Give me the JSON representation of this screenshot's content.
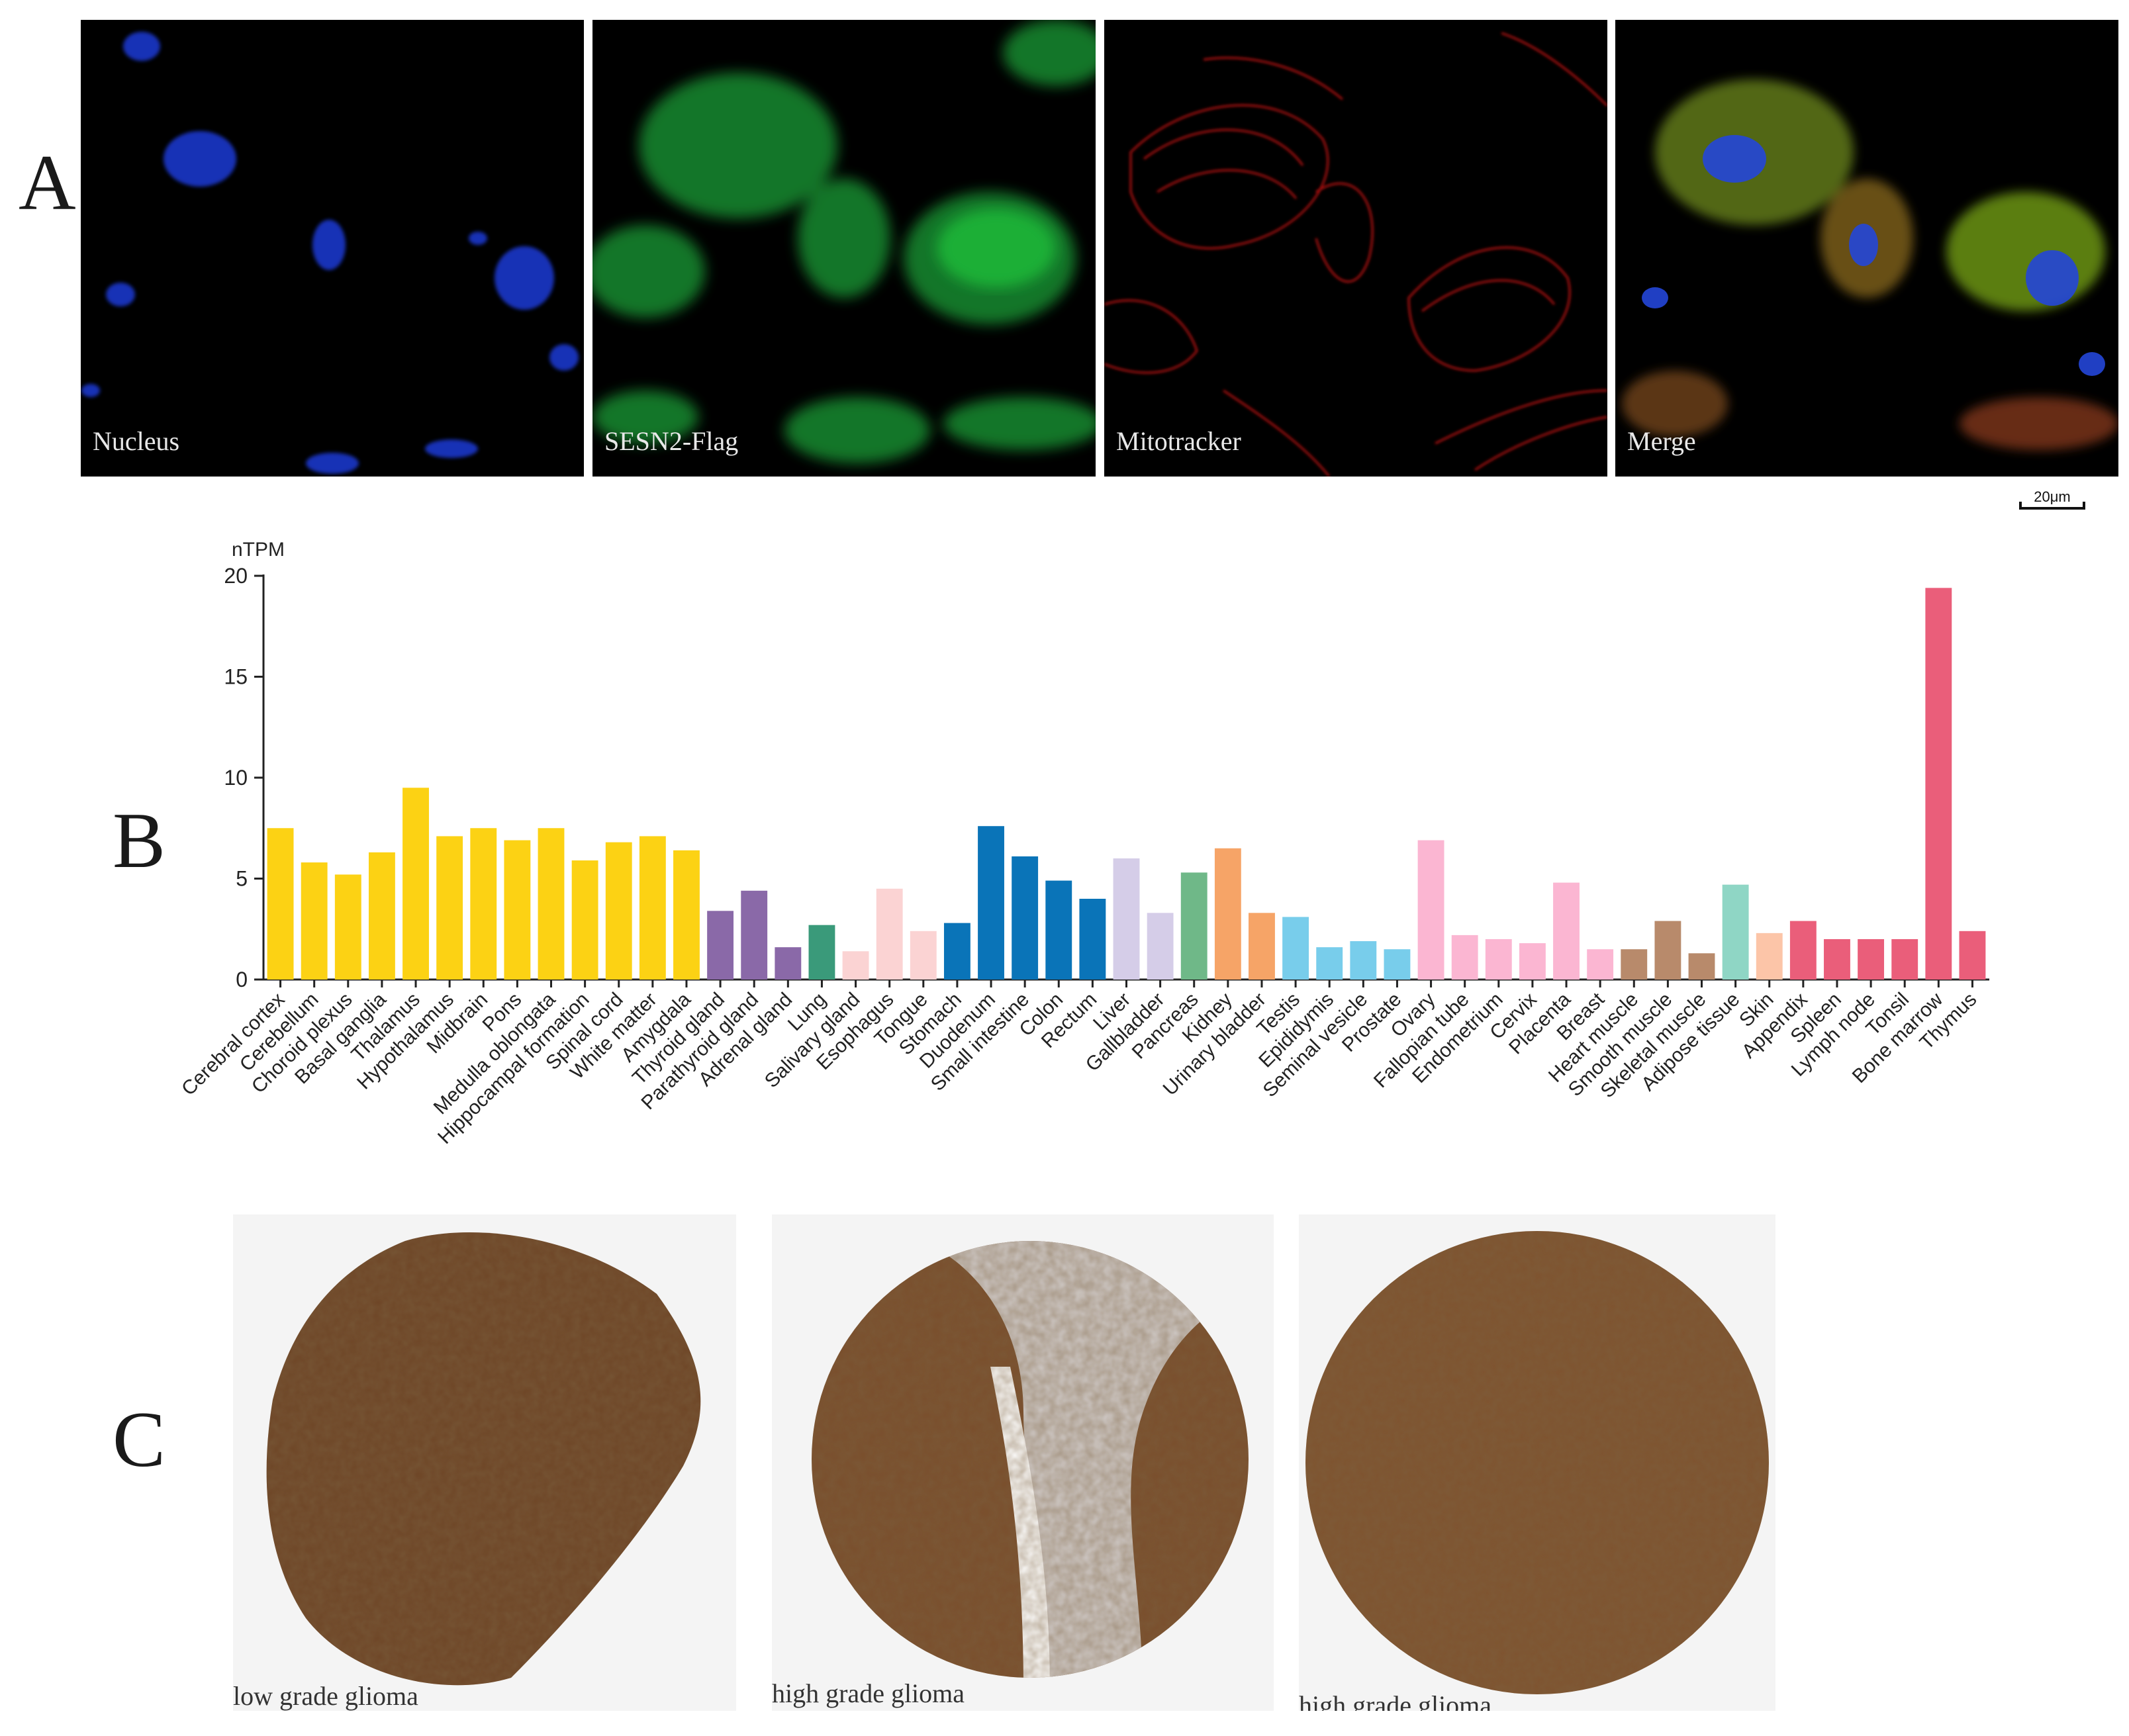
{
  "panel_letters": {
    "a": "A",
    "b": "B",
    "c": "C"
  },
  "microscopy": [
    {
      "label": "Nucleus",
      "color": "#1f3fe0"
    },
    {
      "label": "SESN2-Flag",
      "color": "#1fbf3a"
    },
    {
      "label": "Mitotracker",
      "color": "#e01414"
    },
    {
      "label": "Merge",
      "color": "#8a7a30"
    }
  ],
  "scale_bar": {
    "label": "20μm"
  },
  "chart_data": {
    "type": "bar",
    "ylabel": "nTPM",
    "ylim": [
      0,
      20
    ],
    "yticks": [
      0,
      5,
      10,
      15,
      20
    ],
    "categories": [
      "Cerebral cortex",
      "Cerebellum",
      "Choroid plexus",
      "Basal ganglia",
      "Thalamus",
      "Hypothalamus",
      "Midbrain",
      "Pons",
      "Medulla oblongata",
      "Hippocampal formation",
      "Spinal cord",
      "White matter",
      "Amygdala",
      "Thyroid gland",
      "Parathyroid gland",
      "Adrenal gland",
      "Lung",
      "Salivary gland",
      "Esophagus",
      "Tongue",
      "Stomach",
      "Duodenum",
      "Small intestine",
      "Colon",
      "Rectum",
      "Liver",
      "Gallbladder",
      "Pancreas",
      "Kidney",
      "Urinary bladder",
      "Testis",
      "Epididymis",
      "Seminal vesicle",
      "Prostate",
      "Ovary",
      "Fallopian tube",
      "Endometrium",
      "Cervix",
      "Placenta",
      "Breast",
      "Heart muscle",
      "Smooth muscle",
      "Skeletal muscle",
      "Adipose tissue",
      "Skin",
      "Appendix",
      "Spleen",
      "Lymph node",
      "Tonsil",
      "Bone marrow",
      "Thymus"
    ],
    "values": [
      7.5,
      5.8,
      5.2,
      6.3,
      9.5,
      7.1,
      7.5,
      6.9,
      7.5,
      5.9,
      6.8,
      7.1,
      6.4,
      3.4,
      4.4,
      1.6,
      2.7,
      1.4,
      4.5,
      2.4,
      2.8,
      7.6,
      6.1,
      4.9,
      4.0,
      6.0,
      3.3,
      5.3,
      6.5,
      3.3,
      3.1,
      1.6,
      1.9,
      1.5,
      6.9,
      2.2,
      2.0,
      1.8,
      4.8,
      1.5,
      1.5,
      2.9,
      1.3,
      4.7,
      2.3,
      2.9,
      2.0,
      2.0,
      2.0,
      19.4,
      2.4
    ],
    "colors": [
      "#fcd214",
      "#fcd214",
      "#fcd214",
      "#fcd214",
      "#fcd214",
      "#fcd214",
      "#fcd214",
      "#fcd214",
      "#fcd214",
      "#fcd214",
      "#fcd214",
      "#fcd214",
      "#fcd214",
      "#8a69a8",
      "#8a69a8",
      "#8a69a8",
      "#3a9a7a",
      "#fbd3d3",
      "#fbd3d3",
      "#fbd3d3",
      "#0a74b8",
      "#0a74b8",
      "#0a74b8",
      "#0a74b8",
      "#0a74b8",
      "#d5cde8",
      "#d5cde8",
      "#6fb888",
      "#f6a467",
      "#f6a467",
      "#78cdeb",
      "#78cdeb",
      "#78cdeb",
      "#78cdeb",
      "#fbb6d2",
      "#fbb6d2",
      "#fbb6d2",
      "#fbb6d2",
      "#fbb6d2",
      "#fbb6d2",
      "#b88a6b",
      "#b88a6b",
      "#b88a6b",
      "#8fd6c5",
      "#fcc5a8",
      "#ea5e7a",
      "#ea5e7a",
      "#ea5e7a",
      "#ea5e7a",
      "#ea5e7a",
      "#ea5e7a"
    ],
    "grid": false,
    "legend": "none"
  },
  "ihc": [
    {
      "label": "low grade glioma"
    },
    {
      "label": "high grade glioma"
    },
    {
      "label": "high grade glioma"
    }
  ]
}
